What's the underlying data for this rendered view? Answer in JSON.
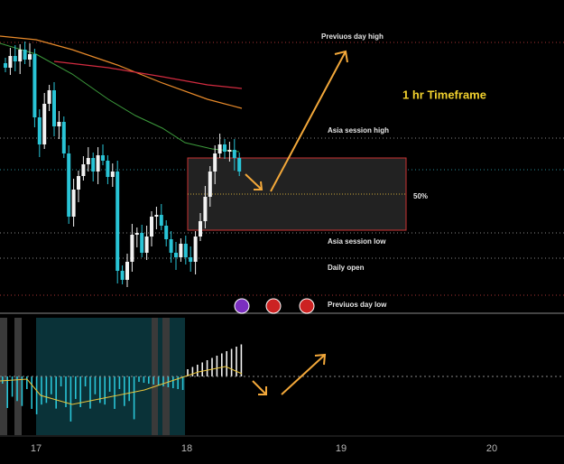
{
  "annotations": {
    "title": "1 hr Timeframe",
    "fifty": "50%",
    "levels": [
      "Previuos day high",
      "Asia session high",
      "Asia session low",
      "Daily open",
      "Previuos day low"
    ]
  },
  "x_axis": {
    "labels": [
      "17",
      "18",
      "19",
      "20"
    ]
  }
}
